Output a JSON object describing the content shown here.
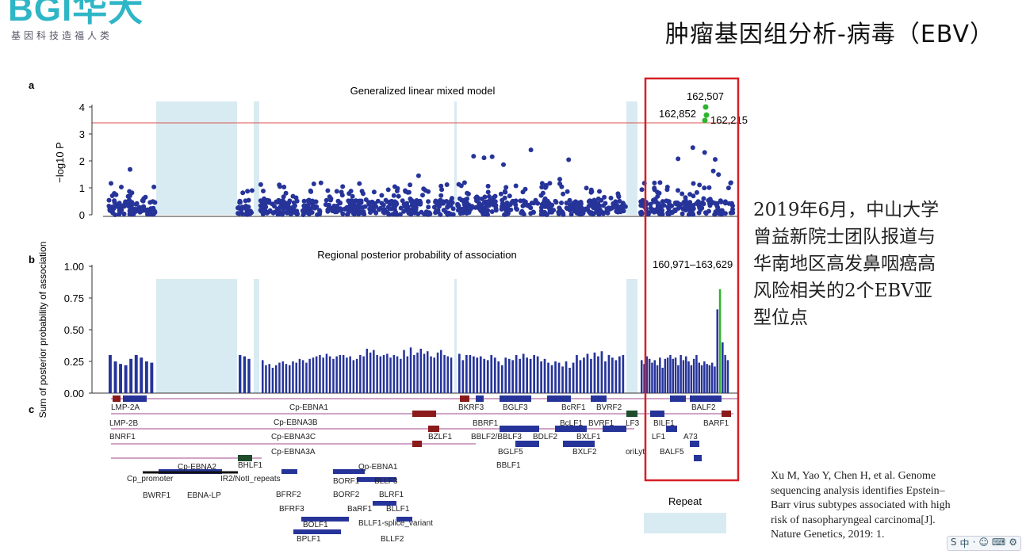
{
  "brand": {
    "logo_text": "BGI华大",
    "tagline": "基因科技造福人类",
    "color": "#2fb6c6"
  },
  "slide": {
    "title": "肿瘤基因组分析-病毒（EBV）"
  },
  "note": {
    "lines": [
      "2019年6月，中山大学",
      "曾益新院士团队报道与",
      "华南地区高发鼻咽癌高",
      "风险相关的2个EBV亚",
      "型位点"
    ]
  },
  "reference": {
    "lines": [
      "Xu M, Yao Y, Chen H, et al. Genome",
      "sequencing analysis identifies Epstein–",
      "Barr virus subtypes associated with high",
      "risk of nasopharyngeal carcinoma[J].",
      "Nature Genetics, 2019: 1."
    ]
  },
  "toolbar": {
    "items": [
      "S",
      "中",
      "·",
      "☺",
      "⌨",
      "⚙"
    ]
  },
  "colors": {
    "points": "#26349a",
    "highlight": "#2db52d",
    "threshold": "#d9534f",
    "shade": "#d9ebf2",
    "box": "#d61f26"
  },
  "figure": {
    "panel_a_label": "a",
    "panel_b_label": "b",
    "panel_c_label": "c",
    "repeat_label": "Repeat",
    "highlight_labels": [
      "162,507",
      "162,852",
      "162,215"
    ],
    "region_label": "160,971–163,629",
    "gene_labels": [
      "LMP-2A",
      "LMP-2B",
      "BNRF1",
      "Cp-EBNA1",
      "Cp-EBNA3B",
      "Cp-EBNA3C",
      "Cp-EBNA3A",
      "BHLF1",
      "Cp-EBNA2",
      "Cp_promoter",
      "BWRF1",
      "EBNA-LP",
      "IR2/NotI_repeats",
      "Qp-EBNA1",
      "BORF1",
      "BLLF3",
      "BFRF2",
      "BORF2",
      "BLRF1",
      "BFRF3",
      "BaRF1",
      "BLLF1",
      "BOLF1",
      "BLLF1-splice_variant",
      "BPLF1",
      "BLLF2",
      "BKRF3",
      "BBRF1",
      "BZLF1",
      "BGLF3",
      "BBLF2/BBLF3",
      "BGLF5",
      "BBLF1",
      "BcRF1",
      "BcLF1",
      "BDLF2",
      "BVRF2",
      "BVRF1",
      "BXLF1",
      "BXLF2",
      "LF3",
      "oriLyt",
      "BILF1",
      "LF1",
      "A73",
      "BALF5",
      "BALF2",
      "BARF1"
    ]
  },
  "chart_data": [
    {
      "type": "scatter",
      "title": "Generalized linear mixed model",
      "ylabel": "−log10 P",
      "ylim": [
        0,
        4
      ],
      "yticks": [
        "0",
        "1",
        "2",
        "3",
        "4"
      ],
      "threshold": 3.4,
      "highlighted_points": [
        {
          "label": "162,507",
          "y": 4.0
        },
        {
          "label": "162,852",
          "y": 3.7
        },
        {
          "label": "162,215",
          "y": 3.5
        }
      ]
    },
    {
      "type": "bar",
      "title": "Regional posterior probability of association",
      "ylabel": "Sum of posterior probability of association",
      "ylim": [
        0,
        1
      ],
      "yticks": [
        "0.00",
        "0.25",
        "0.50",
        "0.75",
        "1.00"
      ],
      "highlight_region": "160,971–163,629",
      "highlighted_value": 0.82,
      "values": [
        0.3,
        0.25,
        0.23,
        0.22,
        0.27,
        0.3,
        0.28,
        0.25,
        0.24,
        0.3,
        0.29,
        0.27,
        0.26,
        0.22,
        0.23,
        0.2,
        0.22,
        0.24,
        0.25,
        0.23,
        0.22,
        0.25,
        0.24,
        0.27,
        0.26,
        0.24,
        0.27,
        0.28,
        0.29,
        0.3,
        0.28,
        0.31,
        0.29,
        0.27,
        0.29,
        0.3,
        0.3,
        0.28,
        0.29,
        0.26,
        0.27,
        0.3,
        0.29,
        0.35,
        0.32,
        0.34,
        0.3,
        0.29,
        0.3,
        0.31,
        0.28,
        0.3,
        0.29,
        0.27,
        0.34,
        0.29,
        0.36,
        0.3,
        0.32,
        0.35,
        0.31,
        0.33,
        0.29,
        0.28,
        0.32,
        0.34,
        0.3,
        0.29,
        0.28,
        0.31,
        0.26,
        0.3,
        0.3,
        0.29,
        0.28,
        0.29,
        0.27,
        0.26,
        0.3,
        0.28,
        0.25,
        0.22,
        0.28,
        0.27,
        0.26,
        0.3,
        0.27,
        0.31,
        0.28,
        0.27,
        0.3,
        0.29,
        0.25,
        0.27,
        0.24,
        0.22,
        0.25,
        0.24,
        0.21,
        0.25,
        0.2,
        0.24,
        0.3,
        0.26,
        0.28,
        0.31,
        0.27,
        0.32,
        0.29,
        0.33,
        0.25,
        0.3,
        0.28,
        0.26,
        0.29,
        0.3,
        0.26,
        0.23,
        0.29,
        0.27,
        0.24,
        0.26,
        0.22,
        0.28,
        0.2,
        0.27,
        0.28,
        0.3,
        0.27,
        0.28,
        0.22,
        0.3,
        0.26,
        0.29,
        0.25,
        0.22,
        0.27,
        0.3,
        0.24,
        0.22,
        0.25,
        0.23,
        0.22,
        0.24,
        0.21,
        0.66,
        0.82,
        0.4,
        0.3,
        0.26,
        0.28,
        0.27
      ]
    }
  ]
}
